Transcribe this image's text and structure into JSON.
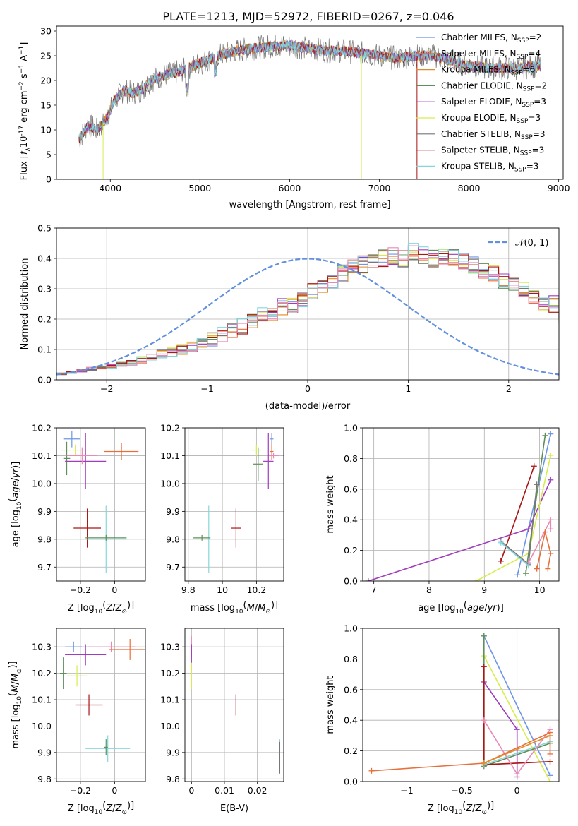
{
  "title": "PLATE=1213, MJD=52972, FIBERID=0267, z=0.046",
  "colors": {
    "chabrier_miles": "#6f95e6",
    "salpeter_miles": "#e76f3a",
    "kroupa_miles": "#e08b2a",
    "chabrier_elodie": "#5f8f5a",
    "salpeter_elodie": "#a03cbd",
    "kroupa_elodie": "#d7ec4c",
    "chabrier_stelib": "#777777",
    "salpeter_stelib": "#aa1515",
    "kroupa_stelib": "#86d6dc",
    "pink": "#e98ab6",
    "normal_curve": "#6190df",
    "grid": "#b0b0b0"
  },
  "chart_data": [
    {
      "id": "spectrum",
      "type": "line",
      "title": "PLATE=1213, MJD=52972, FIBERID=0267, z=0.046",
      "xlabel": "wavelength [Angstrom, rest frame]",
      "ylabel_main": "Flux [",
      "ylabel_sub": "10",
      "ylabel_sup": "-17",
      "ylabel_rest": " erg cm",
      "ylabel_units": " s",
      "xlim": [
        3400,
        9050
      ],
      "ylim": [
        0,
        31
      ],
      "xticks": [
        4000,
        5000,
        6000,
        7000,
        8000,
        9000
      ],
      "yticks": [
        0,
        5,
        10,
        15,
        20,
        25,
        30
      ],
      "legend_position": "top-right",
      "legend": [
        {
          "pre": "Chabrier MILES, N",
          "sub": "SSP",
          "post": "=2",
          "color_key": "chabrier_miles"
        },
        {
          "pre": "Salpeter MILES, N",
          "sub": "SSP",
          "post": "=4",
          "color_key": "salpeter_miles"
        },
        {
          "pre": "Kroupa MILES, N",
          "sub": "SSP",
          "post": "=6",
          "color_key": "kroupa_miles"
        },
        {
          "pre": "Chabrier ELODIE, N",
          "sub": "SSP",
          "post": "=2",
          "color_key": "chabrier_elodie"
        },
        {
          "pre": "Salpeter ELODIE, N",
          "sub": "SSP",
          "post": "=3",
          "color_key": "salpeter_elodie"
        },
        {
          "pre": "Kroupa ELODIE, N",
          "sub": "SSP",
          "post": "=3",
          "color_key": "kroupa_elodie"
        },
        {
          "pre": "Chabrier STELIB, N",
          "sub": "SSP",
          "post": "=3",
          "color_key": "chabrier_stelib"
        },
        {
          "pre": "Salpeter STELIB, N",
          "sub": "SSP",
          "post": "=3",
          "color_key": "salpeter_stelib"
        },
        {
          "pre": "Kroupa STELIB, N",
          "sub": "SSP",
          "post": "=3",
          "color_key": "kroupa_stelib"
        }
      ],
      "continuum": [
        [
          3650,
          8
        ],
        [
          3750,
          11
        ],
        [
          3850,
          10
        ],
        [
          3950,
          12
        ],
        [
          4050,
          16
        ],
        [
          4150,
          18
        ],
        [
          4250,
          17.5
        ],
        [
          4350,
          18
        ],
        [
          4450,
          20
        ],
        [
          4600,
          21
        ],
        [
          4800,
          22
        ],
        [
          5000,
          23.5
        ],
        [
          5200,
          25
        ],
        [
          5400,
          26
        ],
        [
          5600,
          26.5
        ],
        [
          5800,
          27
        ],
        [
          6000,
          27
        ],
        [
          6200,
          26.5
        ],
        [
          6400,
          26
        ],
        [
          6600,
          26
        ],
        [
          6800,
          25.5
        ],
        [
          7000,
          25
        ],
        [
          7200,
          24.5
        ],
        [
          7400,
          25
        ],
        [
          7600,
          25
        ],
        [
          7800,
          24
        ],
        [
          8000,
          23
        ],
        [
          8200,
          22.5
        ],
        [
          8500,
          22.5
        ],
        [
          8800,
          23
        ]
      ],
      "drops": [
        {
          "x": 6800,
          "color_key": "kroupa_elodie"
        },
        {
          "x": 7420,
          "color_key": "salpeter_stelib"
        },
        {
          "x": 3920,
          "color_key": "kroupa_elodie"
        }
      ]
    },
    {
      "id": "residuals",
      "type": "bar",
      "xlabel": "(data-model)/error",
      "ylabel": "Normed distribution",
      "xlim": [
        -2.5,
        2.5
      ],
      "ylim": [
        0,
        0.5
      ],
      "xticks": [
        -2,
        -1,
        0,
        1,
        2
      ],
      "yticks": [
        0.0,
        0.1,
        0.2,
        0.3,
        0.4,
        0.5
      ],
      "legend_position": "top-right",
      "legend_label": "𝒩(0, 1)",
      "bin_width": 0.1,
      "bin_start": -2.5,
      "base_values": [
        0.02,
        0.025,
        0.03,
        0.035,
        0.04,
        0.045,
        0.05,
        0.055,
        0.065,
        0.075,
        0.085,
        0.09,
        0.1,
        0.11,
        0.12,
        0.135,
        0.15,
        0.16,
        0.18,
        0.2,
        0.21,
        0.22,
        0.24,
        0.25,
        0.27,
        0.29,
        0.31,
        0.33,
        0.35,
        0.37,
        0.38,
        0.39,
        0.4,
        0.41,
        0.4,
        0.42,
        0.41,
        0.4,
        0.41,
        0.4,
        0.39,
        0.38,
        0.36,
        0.35,
        0.33,
        0.31,
        0.3,
        0.28,
        0.26,
        0.25,
        0.22,
        0.2,
        0.18,
        0.17,
        0.15,
        0.14,
        0.12,
        0.11,
        0.1,
        0.09,
        0.08,
        0.07,
        0.06,
        0.055,
        0.045,
        0.04,
        0.035,
        0.03,
        0.028,
        0.025,
        0.02,
        0.018,
        0.016,
        0.015,
        0.015,
        0.012,
        0.01,
        0.01,
        0.01,
        0.01,
        0.01,
        0.01,
        0.01,
        0.01,
        0.01,
        0.01,
        0.01,
        0.01,
        0.01,
        0.01
      ]
    },
    {
      "id": "age_vs_Z",
      "type": "scatter",
      "xlabel": "Z [log",
      "ylabel": "age",
      "xlim": [
        -0.34,
        0.18
      ],
      "ylim": [
        9.65,
        10.2
      ],
      "xticks": [
        -0.2,
        0.0
      ],
      "yticks": [
        9.7,
        9.8,
        9.9,
        10.0,
        10.1,
        10.2
      ],
      "points": [
        {
          "x": -0.25,
          "y": 10.16,
          "ex": 0.05,
          "ey": 0.03,
          "color_key": "chabrier_miles"
        },
        {
          "x": 0.04,
          "y": 10.115,
          "ex": 0.1,
          "ey": 0.03,
          "color_key": "salpeter_miles"
        },
        {
          "x": -0.23,
          "y": 10.12,
          "ex": 0.08,
          "ey": 0.02,
          "color_key": "kroupa_elodie"
        },
        {
          "x": -0.28,
          "y": 10.09,
          "ex": 0.02,
          "ey": 0.06,
          "color_key": "chabrier_elodie"
        },
        {
          "x": -0.17,
          "y": 10.08,
          "ex": 0.12,
          "ey": 0.1,
          "color_key": "salpeter_elodie"
        },
        {
          "x": -0.19,
          "y": 10.1,
          "ex": 0.09,
          "ey": 0.03,
          "color_key": "pink"
        },
        {
          "x": -0.16,
          "y": 9.84,
          "ex": 0.08,
          "ey": 0.07,
          "color_key": "salpeter_stelib"
        },
        {
          "x": -0.05,
          "y": 9.8,
          "ex": 0.12,
          "ey": 0.12,
          "color_key": "kroupa_stelib"
        },
        {
          "x": -0.05,
          "y": 9.805,
          "ex": 0.12,
          "ey": 0.01,
          "color_key": "chabrier_elodie"
        }
      ]
    },
    {
      "id": "age_vs_mass",
      "type": "scatter",
      "xlabel": "mass [log",
      "ylabel": "",
      "xlim": [
        9.78,
        10.36
      ],
      "ylim": [
        9.65,
        10.2
      ],
      "xticks": [
        9.8,
        10.0,
        10.2
      ],
      "yticks": [
        9.7,
        9.8,
        9.9,
        10.0,
        10.1,
        10.2
      ],
      "points": [
        {
          "x": 10.29,
          "y": 10.16,
          "ex": 0.01,
          "ey": 0.02,
          "color_key": "chabrier_miles"
        },
        {
          "x": 10.29,
          "y": 10.115,
          "ex": 0.01,
          "ey": 0.03,
          "color_key": "salpeter_miles"
        },
        {
          "x": 10.3,
          "y": 10.1,
          "ex": 0.03,
          "ey": 0.01,
          "color_key": "pink"
        },
        {
          "x": 10.2,
          "y": 10.12,
          "ex": 0.03,
          "ey": 0.02,
          "color_key": "kroupa_elodie"
        },
        {
          "x": 10.21,
          "y": 10.07,
          "ex": 0.03,
          "ey": 0.06,
          "color_key": "chabrier_elodie"
        },
        {
          "x": 10.27,
          "y": 10.08,
          "ex": 0.03,
          "ey": 0.1,
          "color_key": "salpeter_elodie"
        },
        {
          "x": 10.08,
          "y": 9.84,
          "ex": 0.03,
          "ey": 0.07,
          "color_key": "salpeter_stelib"
        },
        {
          "x": 9.92,
          "y": 9.8,
          "ex": 0.01,
          "ey": 0.12,
          "color_key": "kroupa_stelib"
        },
        {
          "x": 9.88,
          "y": 9.805,
          "ex": 0.05,
          "ey": 0.01,
          "color_key": "chabrier_elodie"
        }
      ]
    },
    {
      "id": "massweight_vs_age",
      "type": "line",
      "xlabel": "age",
      "ylabel": "mass weight",
      "xlim": [
        6.8,
        10.35
      ],
      "ylim": [
        0,
        1.0
      ],
      "xticks": [
        7,
        8,
        9,
        10
      ],
      "yticks": [
        0.0,
        0.2,
        0.4,
        0.6,
        0.8,
        1.0
      ],
      "series": [
        {
          "color_key": "chabrier_miles",
          "points": [
            [
              9.6,
              0.04
            ],
            [
              10.2,
              0.96
            ]
          ]
        },
        {
          "color_key": "salpeter_elodie",
          "points": [
            [
              6.9,
              0.0
            ],
            [
              9.8,
              0.34
            ],
            [
              10.2,
              0.66
            ]
          ]
        },
        {
          "color_key": "kroupa_elodie",
          "points": [
            [
              8.85,
              0.0
            ],
            [
              9.8,
              0.18
            ],
            [
              10.2,
              0.82
            ]
          ]
        },
        {
          "color_key": "chabrier_elodie",
          "points": [
            [
              9.75,
              0.05
            ],
            [
              10.1,
              0.95
            ]
          ]
        },
        {
          "color_key": "salpeter_stelib",
          "points": [
            [
              9.3,
              0.13
            ],
            [
              9.9,
              0.75
            ]
          ]
        },
        {
          "color_key": "chabrier_stelib",
          "points": [
            [
              9.3,
              0.26
            ],
            [
              9.8,
              0.11
            ],
            [
              9.95,
              0.63
            ]
          ]
        },
        {
          "color_key": "kroupa_stelib",
          "points": [
            [
              9.3,
              0.25
            ],
            [
              9.8,
              0.1
            ]
          ]
        },
        {
          "color_key": "pink",
          "points": [
            [
              9.8,
              0.12
            ],
            [
              10.2,
              0.4
            ],
            [
              10.2,
              0.34
            ]
          ]
        },
        {
          "color_key": "salpeter_miles",
          "points": [
            [
              9.95,
              0.08
            ],
            [
              10.1,
              0.32
            ],
            [
              10.2,
              0.18
            ],
            [
              10.15,
              0.08
            ]
          ]
        }
      ]
    },
    {
      "id": "mass_vs_Z",
      "type": "scatter",
      "xlabel": "Z [log",
      "ylabel": "mass [log",
      "xlim": [
        -0.34,
        0.18
      ],
      "ylim": [
        9.79,
        10.37
      ],
      "xticks": [
        -0.2,
        0.0
      ],
      "yticks": [
        9.8,
        9.9,
        10.0,
        10.1,
        10.2,
        10.3
      ],
      "points": [
        {
          "x": -0.24,
          "y": 10.3,
          "ex": 0.05,
          "ey": 0.02,
          "color_key": "chabrier_miles"
        },
        {
          "x": -0.02,
          "y": 10.3,
          "ex": 0.14,
          "ey": 0.02,
          "color_key": "pink"
        },
        {
          "x": 0.09,
          "y": 10.29,
          "ex": 0.12,
          "ey": 0.04,
          "color_key": "salpeter_miles"
        },
        {
          "x": -0.17,
          "y": 10.27,
          "ex": 0.12,
          "ey": 0.04,
          "color_key": "salpeter_elodie"
        },
        {
          "x": -0.3,
          "y": 10.2,
          "ex": 0.02,
          "ey": 0.06,
          "color_key": "chabrier_elodie"
        },
        {
          "x": -0.22,
          "y": 10.19,
          "ex": 0.06,
          "ey": 0.04,
          "color_key": "kroupa_elodie"
        },
        {
          "x": -0.15,
          "y": 10.08,
          "ex": 0.08,
          "ey": 0.04,
          "color_key": "salpeter_stelib"
        },
        {
          "x": -0.04,
          "y": 9.915,
          "ex": 0.13,
          "ey": 0.05,
          "color_key": "kroupa_stelib"
        },
        {
          "x": -0.05,
          "y": 9.92,
          "ex": 0.01,
          "ey": 0.03,
          "color_key": "chabrier_elodie"
        }
      ]
    },
    {
      "id": "mass_vs_ebv",
      "type": "scatter",
      "xlabel": "E(B-V)",
      "ylabel": "",
      "xlim": [
        -0.002,
        0.028
      ],
      "ylim": [
        9.79,
        10.37
      ],
      "xticks": [
        0.0,
        0.01,
        0.02
      ],
      "yticks": [
        9.8,
        9.9,
        10.0,
        10.1,
        10.2,
        10.3
      ],
      "points": [
        {
          "x": 0.0,
          "y": 10.3,
          "ex": 0.0,
          "ey": 0.04,
          "color_key": "pink"
        },
        {
          "x": 0.0,
          "y": 10.27,
          "ex": 0.0,
          "ey": 0.04,
          "color_key": "salpeter_elodie"
        },
        {
          "x": 0.0,
          "y": 10.19,
          "ex": 0.0,
          "ey": 0.05,
          "color_key": "kroupa_elodie"
        },
        {
          "x": 0.0135,
          "y": 10.08,
          "ex": 0.0,
          "ey": 0.04,
          "color_key": "salpeter_stelib"
        },
        {
          "x": 0.0268,
          "y": 9.9,
          "ex": 0.0,
          "ey": 0.05,
          "color_key": "kroupa_stelib"
        },
        {
          "x": 0.0268,
          "y": 9.88,
          "ex": 0.0,
          "ey": 0.06,
          "color_key": "chabrier_stelib"
        }
      ]
    },
    {
      "id": "massweight_vs_Z",
      "type": "line",
      "xlabel": "Z [log",
      "ylabel": "mass weight",
      "xlim": [
        -1.4,
        0.38
      ],
      "ylim": [
        0,
        1.0
      ],
      "xticks": [
        -1.0,
        -0.5,
        0.0
      ],
      "yticks": [
        0.0,
        0.2,
        0.4,
        0.6,
        0.8,
        1.0
      ],
      "series": [
        {
          "color_key": "chabrier_miles",
          "points": [
            [
              -0.3,
              0.95
            ],
            [
              0.3,
              0.04
            ]
          ]
        },
        {
          "color_key": "salpeter_elodie",
          "points": [
            [
              -0.3,
              0.65
            ],
            [
              0.0,
              0.34
            ],
            [
              0.0,
              0.03
            ]
          ]
        },
        {
          "color_key": "kroupa_elodie",
          "points": [
            [
              -0.3,
              0.82
            ],
            [
              0.3,
              0.0
            ]
          ]
        },
        {
          "color_key": "chabrier_elodie",
          "points": [
            [
              -0.3,
              0.95
            ],
            [
              -0.3,
              0.1
            ],
            [
              0.3,
              0.25
            ]
          ]
        },
        {
          "color_key": "salpeter_stelib",
          "points": [
            [
              -0.3,
              0.75
            ],
            [
              -0.3,
              0.11
            ],
            [
              0.3,
              0.13
            ]
          ]
        },
        {
          "color_key": "kroupa_stelib",
          "points": [
            [
              -0.3,
              0.11
            ],
            [
              0.3,
              0.26
            ]
          ]
        },
        {
          "color_key": "pink",
          "points": [
            [
              -0.3,
              0.4
            ],
            [
              0.0,
              0.05
            ],
            [
              0.3,
              0.34
            ]
          ]
        },
        {
          "color_key": "salpeter_miles",
          "points": [
            [
              -1.32,
              0.07
            ],
            [
              -0.3,
              0.12
            ],
            [
              0.3,
              0.32
            ],
            [
              0.3,
              0.18
            ]
          ]
        },
        {
          "color_key": "kroupa_miles",
          "points": [
            [
              -0.3,
              0.12
            ],
            [
              0.3,
              0.3
            ]
          ]
        }
      ]
    }
  ]
}
